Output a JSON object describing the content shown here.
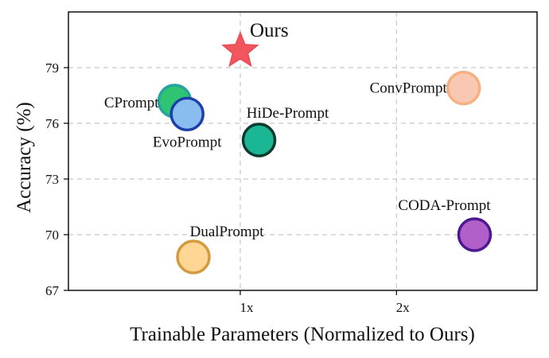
{
  "chart_data": {
    "type": "scatter",
    "title": "",
    "xlabel": "Trainable Parameters (Normalized to Ours)",
    "ylabel": "Accuracy (%)",
    "xlim": [
      -0.1,
      2.9
    ],
    "ylim": [
      67,
      82
    ],
    "x_ticks": [
      1,
      2
    ],
    "x_tick_labels": [
      "1x",
      "2x"
    ],
    "y_ticks": [
      67,
      70,
      73,
      76,
      79
    ],
    "y_tick_labels": [
      "67",
      "70",
      "73",
      "76",
      "79"
    ],
    "grid": true,
    "points": [
      {
        "name": "Ours",
        "x": 1.0,
        "y": 79.9,
        "marker": "star",
        "fill": "#f0474f",
        "stroke": "#e84c55"
      },
      {
        "name": "CPrompt",
        "x": 0.58,
        "y": 77.2,
        "marker": "circle",
        "fill": "#2ec471",
        "stroke": "#27a3a0"
      },
      {
        "name": "EvoPrompt",
        "x": 0.66,
        "y": 76.5,
        "marker": "circle",
        "fill": "#89bdf0",
        "stroke": "#1e3fa8"
      },
      {
        "name": "HiDe-Prompt",
        "x": 1.12,
        "y": 75.1,
        "marker": "circle",
        "fill": "#1bb794",
        "stroke": "#0e3a2f"
      },
      {
        "name": "ConvPrompt",
        "x": 2.43,
        "y": 77.9,
        "marker": "circle",
        "fill": "#f8c8b2",
        "stroke": "#f6b183"
      },
      {
        "name": "CODA-Prompt",
        "x": 2.5,
        "y": 70.0,
        "marker": "circle",
        "fill": "#b060c8",
        "stroke": "#4e1890"
      },
      {
        "name": "DualPrompt",
        "x": 0.7,
        "y": 68.8,
        "marker": "circle",
        "fill": "#ffd693",
        "stroke": "#d49a40"
      }
    ]
  }
}
